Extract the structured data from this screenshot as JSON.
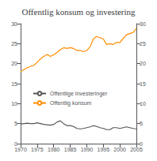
{
  "chart_data": {
    "type": "line",
    "title": "Offentlig konsum og investering",
    "x": [
      1970,
      1971,
      1972,
      1973,
      1974,
      1975,
      1976,
      1977,
      1978,
      1979,
      1980,
      1981,
      1982,
      1983,
      1984,
      1985,
      1986,
      1987,
      1988,
      1989,
      1990,
      1991,
      1992,
      1993,
      1994,
      1995,
      1996,
      1997,
      1998,
      1999,
      2000,
      2001,
      2002,
      2003,
      2004,
      2005
    ],
    "series": [
      {
        "name": "Offentlige Investeringer",
        "color": "#555555",
        "values": [
          4.9,
          5.0,
          5.1,
          5.0,
          5.0,
          5.2,
          5.0,
          4.8,
          4.7,
          4.6,
          4.8,
          5.4,
          5.7,
          5.0,
          4.5,
          4.5,
          4.3,
          3.8,
          3.7,
          3.8,
          4.0,
          4.2,
          4.5,
          4.3,
          4.0,
          3.8,
          3.5,
          3.5,
          4.0,
          4.0,
          3.8,
          4.0,
          4.2,
          4.0,
          3.8,
          3.7
        ]
      },
      {
        "name": "Offentlig konsum",
        "color": "#FF8C00",
        "values": [
          18.0,
          18.5,
          19.0,
          19.3,
          19.6,
          20.3,
          21.2,
          21.8,
          22.3,
          21.8,
          22.2,
          22.8,
          23.5,
          24.0,
          23.8,
          24.0,
          23.8,
          23.3,
          23.3,
          23.0,
          23.3,
          24.2,
          26.2,
          26.8,
          26.5,
          26.2,
          24.8,
          25.0,
          24.8,
          25.3,
          25.3,
          26.3,
          27.2,
          27.5,
          27.8,
          28.8
        ]
      }
    ],
    "xlim": [
      1970,
      2005
    ],
    "xticks": [
      1970,
      1975,
      1980,
      1985,
      1990,
      1995,
      2000,
      2005
    ],
    "ylim": [
      0,
      30
    ],
    "yticks": [
      0,
      5,
      10,
      15,
      20,
      25,
      30
    ],
    "y2lim": [
      0,
      30
    ],
    "y2ticks": [
      0,
      5,
      10,
      15,
      20,
      25,
      30
    ],
    "grid": false,
    "legend": "left"
  }
}
